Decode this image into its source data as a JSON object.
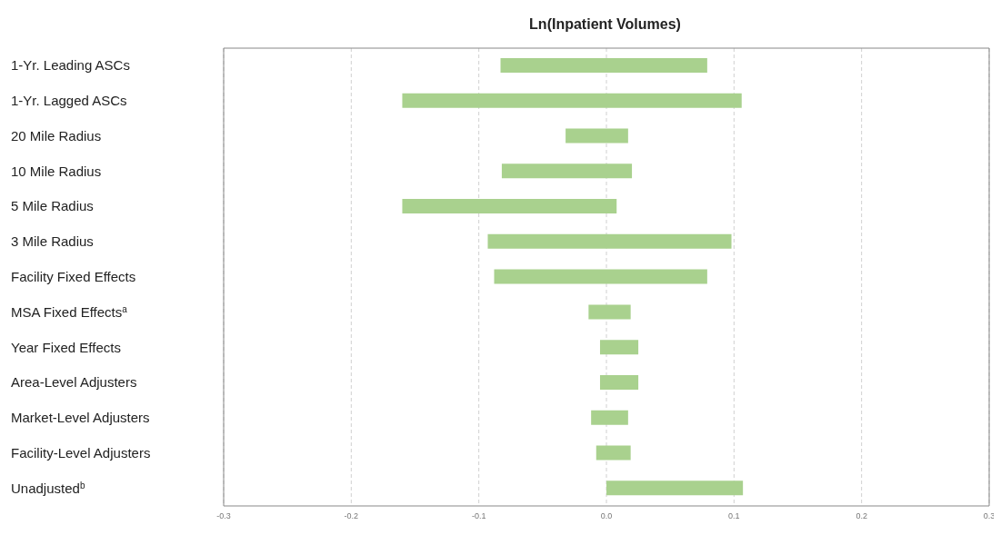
{
  "chart_data": {
    "type": "bar",
    "orientation": "horizontal",
    "title": "Ln(Inpatient Volumes)",
    "categories": [
      "1-Yr. Leading ASCs",
      "1-Yr. Lagged ASCs",
      "20 Mile Radius",
      "10 Mile Radius",
      "5 Mile Radius",
      "3 Mile Radius",
      "Facility Fixed Effects",
      "MSA Fixed Effects$^{a}$",
      "Year Fixed Effects",
      "Area-Level Adjusters",
      "Market-Level Adjusters",
      "Facility-Level Adjusters",
      "Unadjusted$^{b}$"
    ],
    "base": [
      -0.083,
      -0.16,
      -0.032,
      -0.082,
      -0.16,
      -0.093,
      -0.088,
      -0.014,
      -0.005,
      -0.005,
      -0.012,
      -0.008,
      0
    ],
    "values": [
      0.162,
      0.266,
      0.049,
      0.102,
      0.168,
      0.191,
      0.167,
      0.033,
      0.03,
      0.03,
      0.029,
      0.027,
      0.107
    ],
    "color": "#a9d18e",
    "xlim": [
      -0.3,
      0.3
    ],
    "xticks": [
      {
        "value": -0.3,
        "label": "-0.3"
      },
      {
        "value": -0.2,
        "label": "-0.2"
      },
      {
        "value": -0.1,
        "label": "-0.1"
      },
      {
        "value": 0,
        "label": "0.0"
      },
      {
        "value": 0.1,
        "label": "0.1"
      },
      {
        "value": 0.2,
        "label": "0.2"
      },
      {
        "value": 0.3,
        "label": "0.3"
      }
    ],
    "grid": "x"
  }
}
